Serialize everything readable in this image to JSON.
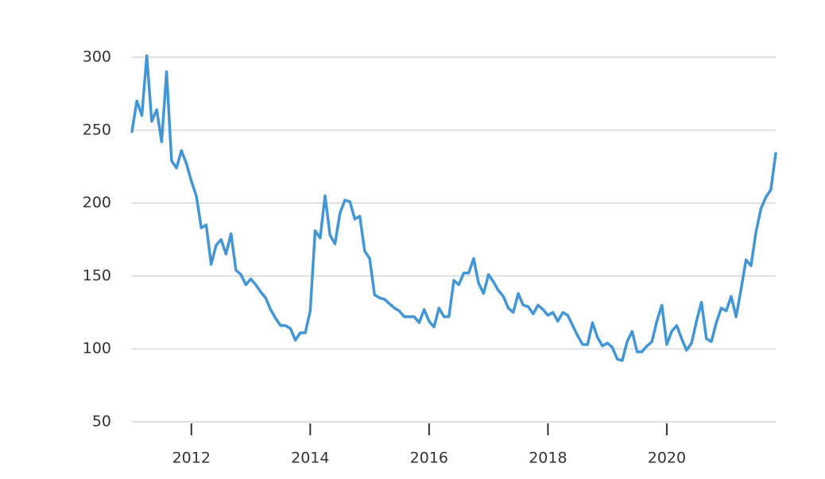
{
  "chart_data": {
    "type": "line",
    "color": "#4396d6",
    "grid": true,
    "x": [
      2011,
      2011.083,
      2011.167,
      2011.25,
      2011.333,
      2011.417,
      2011.5,
      2011.583,
      2011.667,
      2011.75,
      2011.833,
      2011.917,
      2012,
      2012.083,
      2012.167,
      2012.25,
      2012.333,
      2012.417,
      2012.5,
      2012.583,
      2012.667,
      2012.75,
      2012.833,
      2012.917,
      2013,
      2013.083,
      2013.167,
      2013.25,
      2013.333,
      2013.417,
      2013.5,
      2013.583,
      2013.667,
      2013.75,
      2013.833,
      2013.917,
      2014,
      2014.083,
      2014.167,
      2014.25,
      2014.333,
      2014.417,
      2014.5,
      2014.583,
      2014.667,
      2014.75,
      2014.833,
      2014.917,
      2015,
      2015.083,
      2015.167,
      2015.25,
      2015.333,
      2015.417,
      2015.5,
      2015.583,
      2015.667,
      2015.75,
      2015.833,
      2015.917,
      2016,
      2016.083,
      2016.167,
      2016.25,
      2016.333,
      2016.417,
      2016.5,
      2016.583,
      2016.667,
      2016.75,
      2016.833,
      2016.917,
      2017,
      2017.083,
      2017.167,
      2017.25,
      2017.333,
      2017.417,
      2017.5,
      2017.583,
      2017.667,
      2017.75,
      2017.833,
      2017.917,
      2018,
      2018.083,
      2018.167,
      2018.25,
      2018.333,
      2018.417,
      2018.5,
      2018.583,
      2018.667,
      2018.75,
      2018.833,
      2018.917,
      2019,
      2019.083,
      2019.167,
      2019.25,
      2019.333,
      2019.417,
      2019.5,
      2019.583,
      2019.667,
      2019.75,
      2019.833,
      2019.917,
      2020,
      2020.083,
      2020.167,
      2020.25,
      2020.333,
      2020.417,
      2020.5,
      2020.583,
      2020.667,
      2020.75,
      2020.833,
      2020.917,
      2021,
      2021.083,
      2021.167,
      2021.25,
      2021.333,
      2021.417,
      2021.5,
      2021.583,
      2021.667,
      2021.75,
      2021.833
    ],
    "values": [
      249,
      270,
      260,
      301,
      256,
      264,
      242,
      290,
      229,
      224,
      236,
      227,
      215,
      205,
      183,
      185,
      158,
      171,
      175,
      165,
      179,
      154,
      151,
      144,
      148,
      144,
      139,
      135,
      127,
      121,
      116,
      116,
      114,
      106,
      111,
      111,
      126,
      181,
      176,
      205,
      178,
      172,
      193,
      202,
      201,
      189,
      191,
      167,
      162,
      137,
      135,
      134,
      131,
      128,
      126,
      122,
      122,
      122,
      118,
      127,
      119,
      115,
      128,
      122,
      122,
      147,
      144,
      152,
      152,
      162,
      145,
      138,
      151,
      146,
      140,
      136,
      128,
      125,
      138,
      130,
      129,
      124,
      130,
      127,
      123,
      125,
      119,
      125,
      123,
      116,
      109,
      103,
      103,
      118,
      108,
      102,
      104,
      101,
      93,
      92,
      105,
      112,
      98,
      98,
      102,
      105,
      119,
      130,
      103,
      112,
      116,
      107,
      99,
      104,
      119,
      132,
      107,
      105,
      118,
      128,
      126,
      136,
      122,
      141,
      161,
      157,
      180,
      196,
      204,
      209,
      234
    ],
    "xlim": [
      2011,
      2021.833
    ],
    "xticks": [
      2012,
      2014,
      2016,
      2018,
      2020
    ],
    "ylim": [
      50,
      300
    ],
    "yticks": [
      50,
      100,
      150,
      200,
      250,
      300
    ]
  }
}
